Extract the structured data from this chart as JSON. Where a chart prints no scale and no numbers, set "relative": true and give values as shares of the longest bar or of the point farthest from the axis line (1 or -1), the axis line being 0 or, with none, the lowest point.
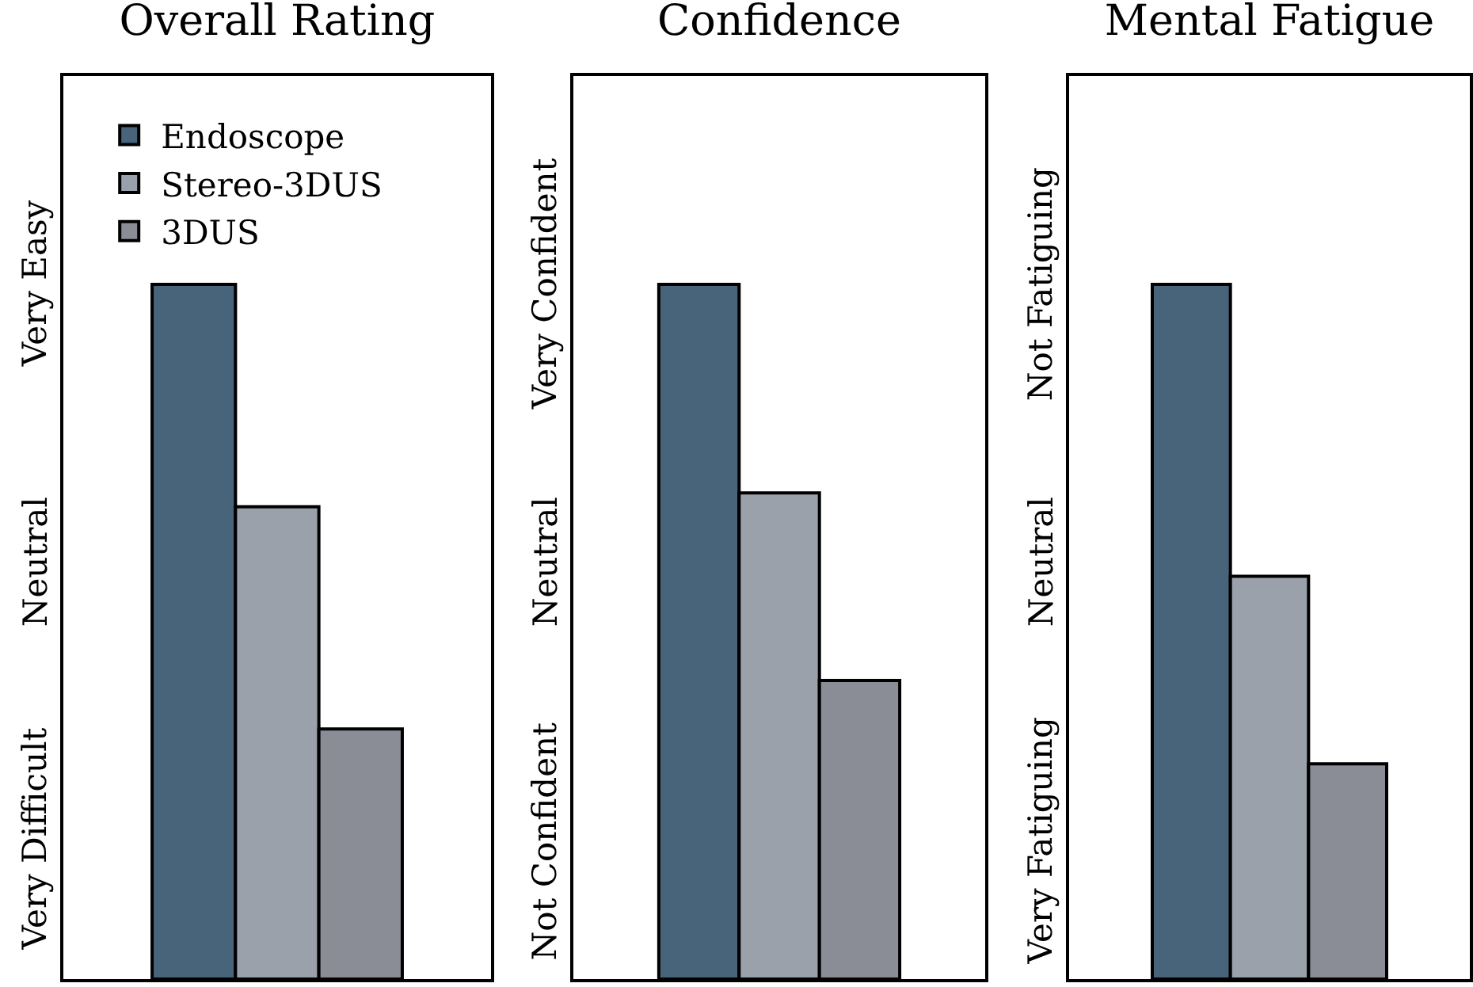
{
  "chart_data": [
    {
      "type": "bar",
      "title": "Overall Rating",
      "categories": [
        null
      ],
      "legend": "top left",
      "relative": true,
      "annotations": [
        "Very Easy",
        "Neutral",
        "Very Difficult"
      ],
      "series": [
        {
          "name": "Endoscope",
          "color": "#48647a",
          "values": [
            1
          ]
        },
        {
          "name": "Stereo-3DUS",
          "color": "#9aa1aa",
          "values": [
            0.68
          ]
        },
        {
          "name": "3DUS",
          "color": "#8a8d96",
          "values": [
            0.36
          ]
        }
      ]
    },
    {
      "type": "bar",
      "title": "Confidence",
      "categories": [
        null
      ],
      "relative": true,
      "annotations": [
        "Very Confident",
        "Neutral",
        "Not Confident"
      ],
      "series": [
        {
          "color": "#48647a",
          "values": [
            1
          ]
        },
        {
          "color": "#9aa1aa",
          "values": [
            0.7
          ]
        },
        {
          "color": "#8a8d96",
          "values": [
            0.43
          ]
        }
      ]
    },
    {
      "type": "bar",
      "title": "Mental Fatigue",
      "categories": [
        null
      ],
      "relative": true,
      "annotations": [
        "Not Fatiguing",
        "Neutral",
        "Very Fatiguing"
      ],
      "series": [
        {
          "color": "#48647a",
          "values": [
            1
          ]
        },
        {
          "color": "#9aa1aa",
          "values": [
            0.58
          ]
        },
        {
          "color": "#8a8d96",
          "values": [
            0.31
          ]
        }
      ]
    }
  ]
}
